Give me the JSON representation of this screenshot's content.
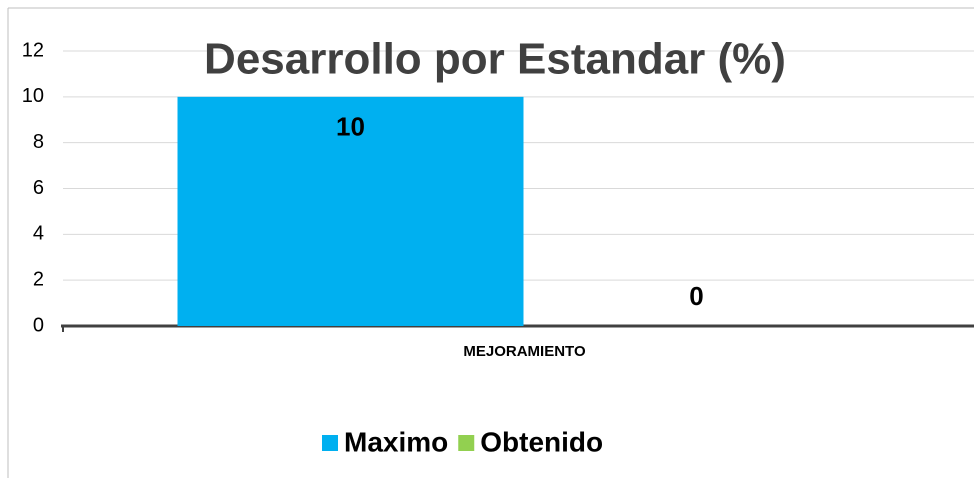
{
  "chart_data": {
    "type": "bar",
    "title": "Desarrollo por Estandar (%)",
    "categories": [
      "MEJORAMIENTO"
    ],
    "series": [
      {
        "name": "Maximo",
        "color": "#00b0f0",
        "values": [
          10
        ]
      },
      {
        "name": "Obtenido",
        "color": "#92d050",
        "values": [
          0
        ]
      }
    ],
    "ylim": [
      0,
      12
    ],
    "yticks": [
      0,
      2,
      4,
      6,
      8,
      10,
      12
    ],
    "grid": true,
    "legend": "bottom"
  }
}
